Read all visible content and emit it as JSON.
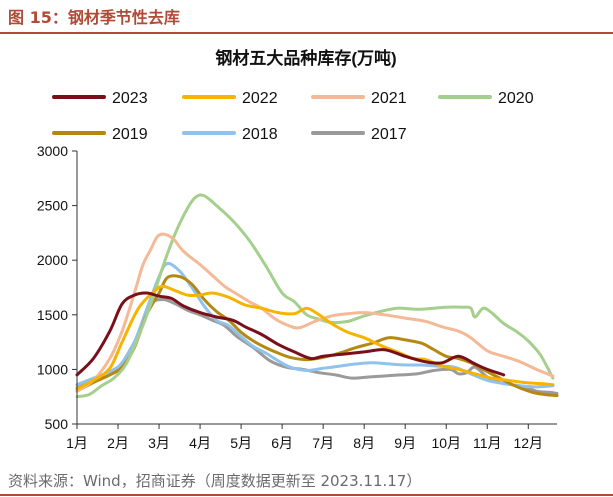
{
  "figure": {
    "caption": "图 15：钢材季节性去库",
    "source": "资料来源：Wind，招商证券（周度数据更新至 2023.11.17）"
  },
  "chart_data": {
    "type": "line",
    "title": "钢材五大品种库存(万吨)",
    "xlabel": "",
    "ylabel": "",
    "ylim": [
      500,
      3000
    ],
    "yticks": [
      500,
      1000,
      1500,
      2000,
      2500,
      3000
    ],
    "xlim": [
      1,
      12.7
    ],
    "xticks": [
      "1月",
      "2月",
      "3月",
      "4月",
      "5月",
      "6月",
      "7月",
      "8月",
      "9月",
      "10月",
      "11月",
      "12月"
    ],
    "grid": false,
    "legend": "top",
    "series": [
      {
        "name": "2023",
        "color": "#7a0f1a",
        "points": [
          [
            1.0,
            950
          ],
          [
            1.4,
            1100
          ],
          [
            1.8,
            1350
          ],
          [
            2.1,
            1600
          ],
          [
            2.4,
            1680
          ],
          [
            2.7,
            1700
          ],
          [
            3.0,
            1670
          ],
          [
            3.3,
            1650
          ],
          [
            3.6,
            1580
          ],
          [
            4.0,
            1520
          ],
          [
            4.4,
            1480
          ],
          [
            4.8,
            1450
          ],
          [
            5.1,
            1390
          ],
          [
            5.5,
            1320
          ],
          [
            5.9,
            1230
          ],
          [
            6.3,
            1160
          ],
          [
            6.7,
            1100
          ],
          [
            7.0,
            1120
          ],
          [
            7.5,
            1140
          ],
          [
            8.0,
            1160
          ],
          [
            8.5,
            1180
          ],
          [
            9.0,
            1120
          ],
          [
            9.5,
            1070
          ],
          [
            9.9,
            1060
          ],
          [
            10.3,
            1120
          ],
          [
            10.7,
            1050
          ],
          [
            11.0,
            1000
          ],
          [
            11.4,
            950
          ]
        ]
      },
      {
        "name": "2022",
        "color": "#f6b400",
        "points": [
          [
            1.0,
            820
          ],
          [
            1.4,
            900
          ],
          [
            1.8,
            1010
          ],
          [
            2.1,
            1250
          ],
          [
            2.5,
            1560
          ],
          [
            2.9,
            1720
          ],
          [
            3.1,
            1760
          ],
          [
            3.4,
            1720
          ],
          [
            3.7,
            1680
          ],
          [
            4.0,
            1680
          ],
          [
            4.3,
            1700
          ],
          [
            4.7,
            1660
          ],
          [
            5.1,
            1590
          ],
          [
            5.5,
            1560
          ],
          [
            5.9,
            1520
          ],
          [
            6.3,
            1510
          ],
          [
            6.6,
            1560
          ],
          [
            6.9,
            1500
          ],
          [
            7.2,
            1420
          ],
          [
            7.6,
            1340
          ],
          [
            8.0,
            1290
          ],
          [
            8.4,
            1220
          ],
          [
            8.8,
            1160
          ],
          [
            9.2,
            1100
          ],
          [
            9.5,
            1090
          ],
          [
            9.9,
            1030
          ],
          [
            10.3,
            1000
          ],
          [
            10.7,
            960
          ],
          [
            11.1,
            920
          ],
          [
            11.5,
            900
          ],
          [
            11.9,
            880
          ],
          [
            12.3,
            870
          ],
          [
            12.6,
            860
          ]
        ]
      },
      {
        "name": "2021",
        "color": "#f4b996",
        "points": [
          [
            1.0,
            800
          ],
          [
            1.4,
            900
          ],
          [
            1.8,
            1100
          ],
          [
            2.1,
            1350
          ],
          [
            2.4,
            1700
          ],
          [
            2.6,
            1950
          ],
          [
            2.8,
            2100
          ],
          [
            3.0,
            2230
          ],
          [
            3.3,
            2210
          ],
          [
            3.6,
            2080
          ],
          [
            4.0,
            1960
          ],
          [
            4.3,
            1860
          ],
          [
            4.6,
            1760
          ],
          [
            4.9,
            1690
          ],
          [
            5.2,
            1620
          ],
          [
            5.5,
            1560
          ],
          [
            5.8,
            1470
          ],
          [
            6.1,
            1410
          ],
          [
            6.4,
            1380
          ],
          [
            6.8,
            1440
          ],
          [
            7.2,
            1490
          ],
          [
            7.6,
            1510
          ],
          [
            8.0,
            1520
          ],
          [
            8.5,
            1500
          ],
          [
            9.0,
            1470
          ],
          [
            9.5,
            1440
          ],
          [
            9.9,
            1390
          ],
          [
            10.3,
            1350
          ],
          [
            10.6,
            1290
          ],
          [
            11.0,
            1170
          ],
          [
            11.4,
            1120
          ],
          [
            11.8,
            1070
          ],
          [
            12.2,
            1000
          ],
          [
            12.6,
            940
          ]
        ]
      },
      {
        "name": "2020",
        "color": "#a5cf8d",
        "points": [
          [
            1.0,
            750
          ],
          [
            1.3,
            770
          ],
          [
            1.6,
            850
          ],
          [
            1.9,
            920
          ],
          [
            2.2,
            1050
          ],
          [
            2.5,
            1300
          ],
          [
            2.8,
            1600
          ],
          [
            3.1,
            1950
          ],
          [
            3.4,
            2250
          ],
          [
            3.7,
            2480
          ],
          [
            3.9,
            2580
          ],
          [
            4.1,
            2590
          ],
          [
            4.4,
            2500
          ],
          [
            4.8,
            2360
          ],
          [
            5.2,
            2180
          ],
          [
            5.6,
            1950
          ],
          [
            6.0,
            1700
          ],
          [
            6.3,
            1620
          ],
          [
            6.6,
            1500
          ],
          [
            6.9,
            1460
          ],
          [
            7.2,
            1430
          ],
          [
            7.6,
            1440
          ],
          [
            8.0,
            1490
          ],
          [
            8.4,
            1530
          ],
          [
            8.8,
            1560
          ],
          [
            9.3,
            1550
          ],
          [
            9.7,
            1560
          ],
          [
            10.0,
            1570
          ],
          [
            10.4,
            1570
          ],
          [
            10.6,
            1560
          ],
          [
            10.7,
            1480
          ],
          [
            10.9,
            1560
          ],
          [
            11.1,
            1520
          ],
          [
            11.4,
            1420
          ],
          [
            11.7,
            1350
          ],
          [
            12.0,
            1260
          ],
          [
            12.3,
            1130
          ],
          [
            12.6,
            920
          ]
        ]
      },
      {
        "name": "2019",
        "color": "#b58911",
        "points": [
          [
            1.0,
            800
          ],
          [
            1.4,
            880
          ],
          [
            1.8,
            950
          ],
          [
            2.1,
            1020
          ],
          [
            2.4,
            1200
          ],
          [
            2.7,
            1500
          ],
          [
            3.0,
            1700
          ],
          [
            3.2,
            1840
          ],
          [
            3.5,
            1850
          ],
          [
            3.8,
            1780
          ],
          [
            4.1,
            1640
          ],
          [
            4.4,
            1530
          ],
          [
            4.7,
            1450
          ],
          [
            5.0,
            1340
          ],
          [
            5.3,
            1260
          ],
          [
            5.6,
            1200
          ],
          [
            5.9,
            1150
          ],
          [
            6.2,
            1110
          ],
          [
            6.6,
            1090
          ],
          [
            7.0,
            1110
          ],
          [
            7.4,
            1150
          ],
          [
            7.8,
            1200
          ],
          [
            8.2,
            1240
          ],
          [
            8.6,
            1290
          ],
          [
            9.0,
            1270
          ],
          [
            9.4,
            1240
          ],
          [
            9.7,
            1180
          ],
          [
            10.0,
            1120
          ],
          [
            10.3,
            1100
          ],
          [
            10.6,
            1060
          ],
          [
            10.9,
            1000
          ],
          [
            11.2,
            940
          ],
          [
            11.5,
            880
          ],
          [
            11.8,
            830
          ],
          [
            12.1,
            790
          ],
          [
            12.4,
            770
          ],
          [
            12.7,
            760
          ]
        ]
      },
      {
        "name": "2018",
        "color": "#8fc2ec",
        "points": [
          [
            1.0,
            860
          ],
          [
            1.4,
            920
          ],
          [
            1.8,
            980
          ],
          [
            2.1,
            1060
          ],
          [
            2.4,
            1250
          ],
          [
            2.7,
            1550
          ],
          [
            3.0,
            1850
          ],
          [
            3.2,
            1970
          ],
          [
            3.5,
            1900
          ],
          [
            3.8,
            1750
          ],
          [
            4.1,
            1580
          ],
          [
            4.4,
            1450
          ],
          [
            4.7,
            1400
          ],
          [
            5.0,
            1300
          ],
          [
            5.3,
            1210
          ],
          [
            5.6,
            1150
          ],
          [
            5.9,
            1080
          ],
          [
            6.2,
            1020
          ],
          [
            6.6,
            990
          ],
          [
            7.0,
            1010
          ],
          [
            7.4,
            1030
          ],
          [
            7.8,
            1050
          ],
          [
            8.2,
            1060
          ],
          [
            8.6,
            1050
          ],
          [
            9.0,
            1040
          ],
          [
            9.4,
            1040
          ],
          [
            9.8,
            1030
          ],
          [
            10.2,
            1020
          ],
          [
            10.6,
            960
          ],
          [
            11.0,
            900
          ],
          [
            11.4,
            870
          ],
          [
            11.8,
            850
          ],
          [
            12.2,
            840
          ],
          [
            12.6,
            850
          ]
        ]
      },
      {
        "name": "2017",
        "color": "#9a9a9a",
        "points": [
          [
            1.0,
            830
          ],
          [
            1.4,
            900
          ],
          [
            1.8,
            950
          ],
          [
            2.1,
            1060
          ],
          [
            2.4,
            1250
          ],
          [
            2.6,
            1400
          ],
          [
            2.8,
            1600
          ],
          [
            3.1,
            1640
          ],
          [
            3.4,
            1600
          ],
          [
            3.7,
            1540
          ],
          [
            4.0,
            1500
          ],
          [
            4.3,
            1450
          ],
          [
            4.6,
            1400
          ],
          [
            4.9,
            1300
          ],
          [
            5.3,
            1200
          ],
          [
            5.7,
            1080
          ],
          [
            6.1,
            1020
          ],
          [
            6.5,
            1000
          ],
          [
            6.9,
            970
          ],
          [
            7.3,
            950
          ],
          [
            7.7,
            920
          ],
          [
            8.1,
            930
          ],
          [
            8.5,
            940
          ],
          [
            8.9,
            950
          ],
          [
            9.3,
            960
          ],
          [
            9.7,
            990
          ],
          [
            10.1,
            1000
          ],
          [
            10.3,
            960
          ],
          [
            10.5,
            970
          ],
          [
            10.7,
            1020
          ],
          [
            11.0,
            930
          ],
          [
            11.3,
            880
          ],
          [
            11.6,
            860
          ],
          [
            11.9,
            840
          ],
          [
            12.2,
            800
          ],
          [
            12.5,
            790
          ],
          [
            12.7,
            780
          ]
        ]
      }
    ]
  }
}
